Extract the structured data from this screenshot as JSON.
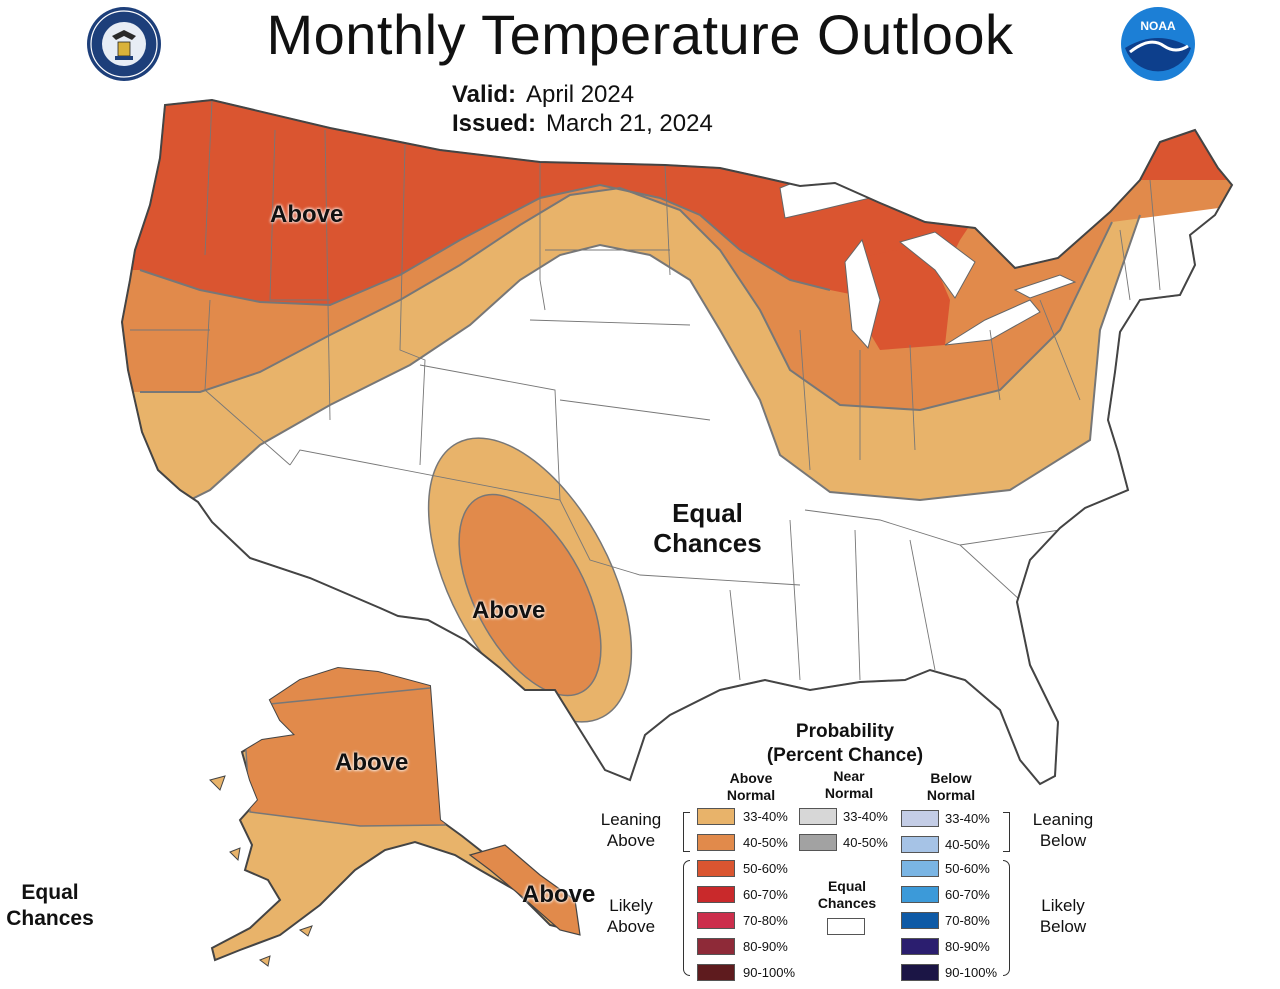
{
  "header": {
    "title": "Monthly Temperature Outlook",
    "valid_label": "Valid:",
    "valid_value": "April 2024",
    "issued_label": "Issued:",
    "issued_value": "March 21, 2024",
    "left_logo": "department-of-commerce-seal",
    "right_logo": "noaa-logo",
    "noaa_text": "NOAA"
  },
  "map_labels": {
    "northwest": "Above",
    "southwest": "Above",
    "central": "Equal Chances",
    "alaska": "Above",
    "alaska_panhandle": "Above",
    "hawaii": "Equal Chances"
  },
  "legend": {
    "title": "Probability",
    "subtitle": "(Percent Chance)",
    "above_header": "Above Normal",
    "near_header": "Near Normal",
    "below_header": "Below Normal",
    "leaning_above": "Leaning Above",
    "likely_above": "Likely Above",
    "leaning_below": "Leaning Below",
    "likely_below": "Likely Below",
    "equal_chances": "Equal Chances",
    "above": [
      {
        "range": "33-40%",
        "color": "#e8b36a"
      },
      {
        "range": "40-50%",
        "color": "#e18a4b"
      },
      {
        "range": "50-60%",
        "color": "#da5530"
      },
      {
        "range": "60-70%",
        "color": "#c9292b"
      },
      {
        "range": "70-80%",
        "color": "#cc2e4c"
      },
      {
        "range": "80-90%",
        "color": "#8e2a38"
      },
      {
        "range": "90-100%",
        "color": "#5e1b1e"
      }
    ],
    "near": [
      {
        "range": "33-40%",
        "color": "#d7d7d7"
      },
      {
        "range": "40-50%",
        "color": "#a2a2a2"
      }
    ],
    "below": [
      {
        "range": "33-40%",
        "color": "#c4cde6"
      },
      {
        "range": "40-50%",
        "color": "#a6c3e6"
      },
      {
        "range": "50-60%",
        "color": "#7ab5e4"
      },
      {
        "range": "60-70%",
        "color": "#3c9ad9"
      },
      {
        "range": "70-80%",
        "color": "#0e5aa6"
      },
      {
        "range": "80-90%",
        "color": "#2b1e6f"
      },
      {
        "range": "90-100%",
        "color": "#1b1545"
      }
    ]
  }
}
